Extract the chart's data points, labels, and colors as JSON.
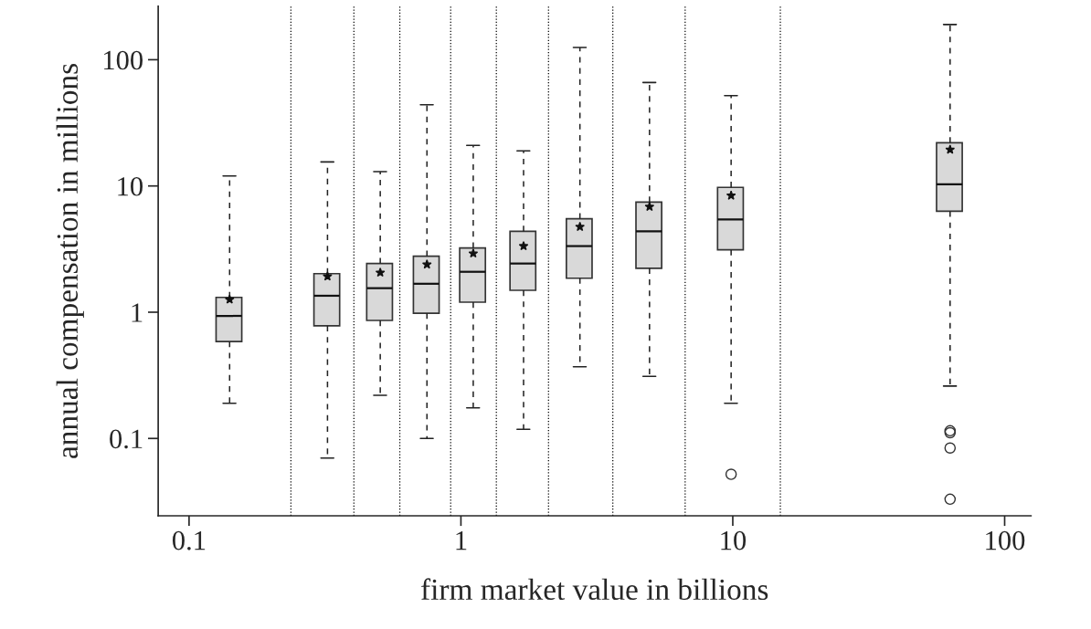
{
  "chart_data": {
    "type": "box",
    "xlabel": "firm market value in billions",
    "ylabel": "annual compensation in millions",
    "x": [
      0.141,
      0.323,
      0.505,
      0.75,
      1.11,
      1.7,
      2.74,
      4.94,
      9.86,
      63
    ],
    "color": "#d9d9d9",
    "boxes": [
      {
        "low": 0.19,
        "q1": 0.585,
        "median": 0.935,
        "q3": 1.31,
        "high": 12,
        "mean": 1.26
      },
      {
        "low": 0.07,
        "q1": 0.78,
        "median": 1.35,
        "q3": 2.02,
        "high": 15.5,
        "mean": 1.92
      },
      {
        "low": 0.22,
        "q1": 0.86,
        "median": 1.55,
        "q3": 2.43,
        "high": 13,
        "mean": 2.06
      },
      {
        "low": 0.1,
        "q1": 0.98,
        "median": 1.68,
        "q3": 2.78,
        "high": 44,
        "mean": 2.39
      },
      {
        "low": 0.175,
        "q1": 1.2,
        "median": 2.09,
        "q3": 3.23,
        "high": 21,
        "mean": 2.92
      },
      {
        "low": 0.118,
        "q1": 1.49,
        "median": 2.43,
        "q3": 4.37,
        "high": 19,
        "mean": 3.34
      },
      {
        "low": 0.37,
        "q1": 1.86,
        "median": 3.34,
        "q3": 5.5,
        "high": 125,
        "mean": 4.75
      },
      {
        "low": 0.31,
        "q1": 2.23,
        "median": 4.37,
        "q3": 7.45,
        "high": 66,
        "mean": 6.85
      },
      {
        "low": 0.19,
        "q1": 3.12,
        "median": 5.43,
        "q3": 9.75,
        "high": 52,
        "mean": 8.4,
        "outliers": [
          0.052
        ]
      },
      {
        "low": 0.26,
        "q1": 6.3,
        "median": 10.3,
        "q3": 22,
        "high": 190,
        "mean": 19.4,
        "outliers": [
          0.115,
          0.111,
          0.084,
          0.033
        ]
      }
    ],
    "ref_lines": [
      {
        "axis": "x",
        "value": 0.237,
        "line_style": "dotted",
        "color": "#000000"
      },
      {
        "axis": "x",
        "value": 0.404,
        "line_style": "dotted",
        "color": "#000000"
      },
      {
        "axis": "x",
        "value": 0.596,
        "line_style": "dotted",
        "color": "#000000"
      },
      {
        "axis": "x",
        "value": 0.917,
        "line_style": "dotted",
        "color": "#000000"
      },
      {
        "axis": "x",
        "value": 1.35,
        "line_style": "dotted",
        "color": "#000000"
      },
      {
        "axis": "x",
        "value": 2.1,
        "line_style": "dotted",
        "color": "#000000"
      },
      {
        "axis": "x",
        "value": 3.62,
        "line_style": "dotted",
        "color": "#000000"
      },
      {
        "axis": "x",
        "value": 6.68,
        "line_style": "dotted",
        "color": "#000000"
      },
      {
        "axis": "x",
        "value": 14.96,
        "line_style": "dotted",
        "color": "#000000"
      }
    ],
    "log": "xy",
    "xlim": [
      0.077,
      125
    ],
    "ylim": [
      0.0244,
      265
    ],
    "xticks": [
      0.1,
      1,
      10,
      100
    ],
    "yticks": [
      0.1,
      1,
      10,
      100
    ],
    "grid": false
  }
}
